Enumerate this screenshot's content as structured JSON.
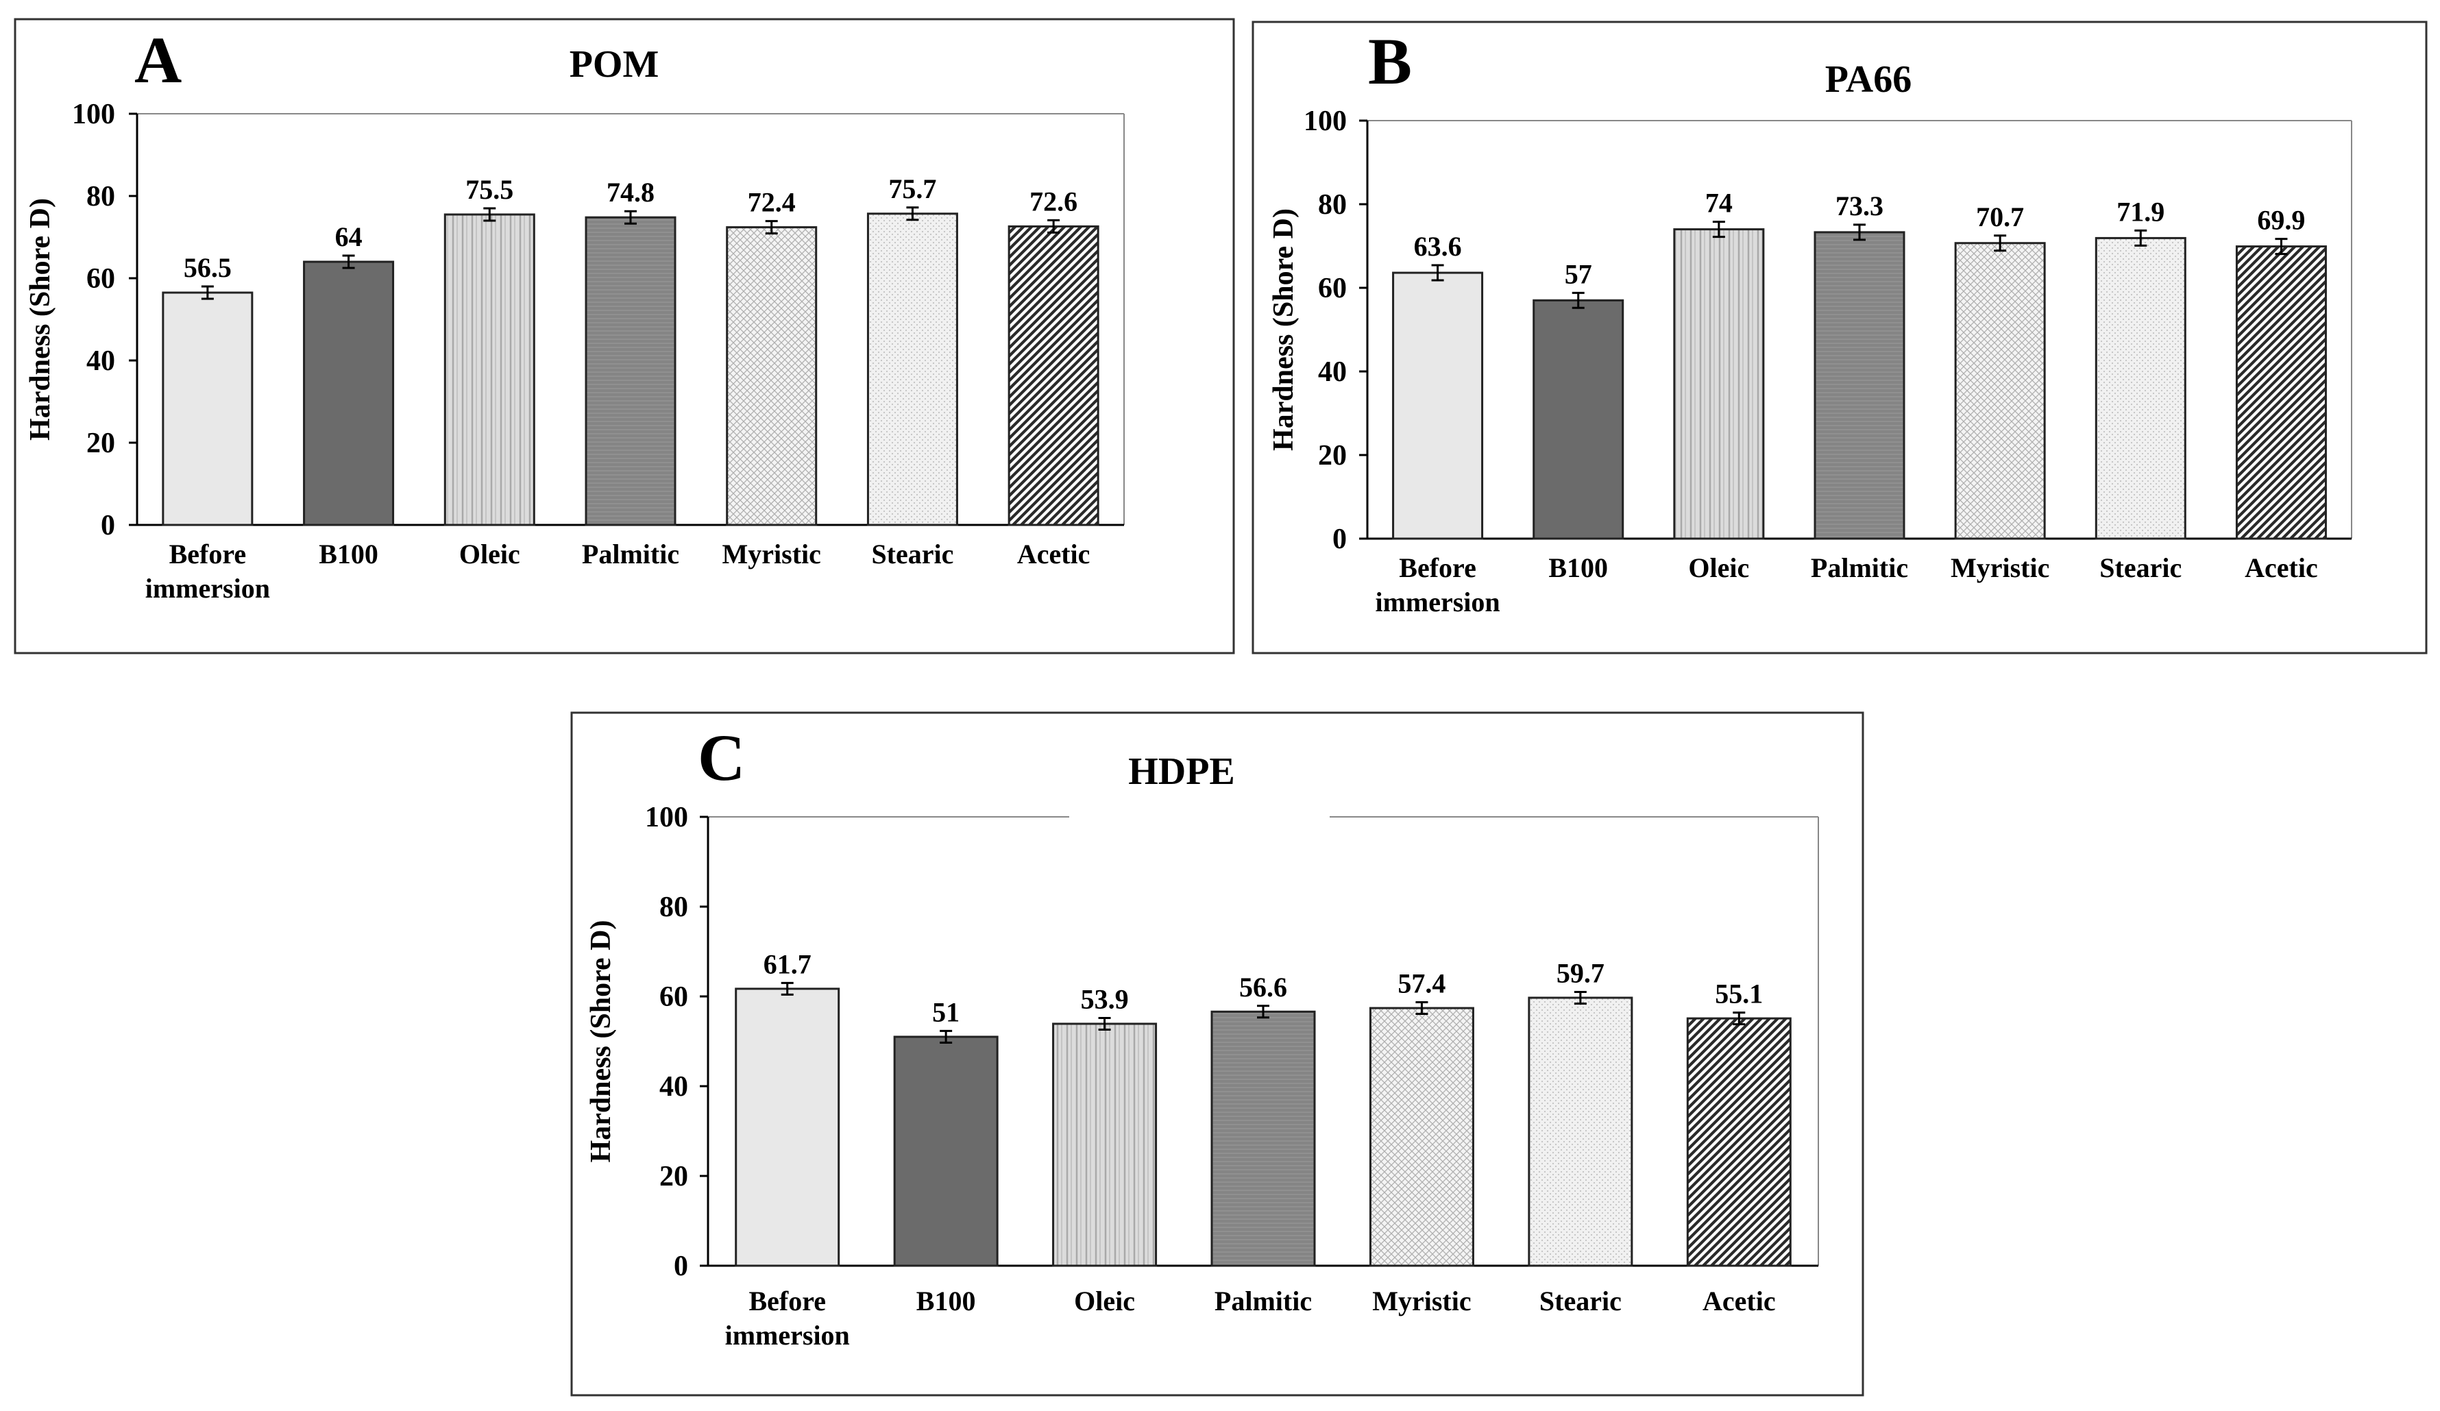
{
  "chart_data": [
    {
      "panel": "A",
      "type": "bar",
      "title": "POM",
      "xlabel": "",
      "ylabel": "Hardness (Shore D)",
      "ylim": [
        0,
        100
      ],
      "yticks": [
        "0",
        "20",
        "40",
        "60",
        "80",
        "100"
      ],
      "categories": [
        "Before immersion",
        "B100",
        "Oleic",
        "Palmitic",
        "Myristic",
        "Stearic",
        "Acetic"
      ],
      "category_lines": [
        [
          "Before",
          "immersion"
        ],
        [
          "B100"
        ],
        [
          "Oleic"
        ],
        [
          "Palmitic"
        ],
        [
          "Myristic"
        ],
        [
          "Stearic"
        ],
        [
          "Acetic"
        ]
      ],
      "values": [
        56.5,
        64,
        75.5,
        74.8,
        72.4,
        75.7,
        72.6
      ],
      "value_labels": [
        "56.5",
        "64",
        "75.5",
        "74.8",
        "72.4",
        "75.7",
        "72.6"
      ],
      "errors": [
        1.5,
        1.5,
        1.5,
        1.5,
        1.5,
        1.5,
        1.5
      ]
    },
    {
      "panel": "B",
      "type": "bar",
      "title": "PA66",
      "xlabel": "",
      "ylabel": "Hardness (Shore D)",
      "ylim": [
        0,
        100
      ],
      "yticks": [
        "0",
        "20",
        "40",
        "60",
        "80",
        "100"
      ],
      "categories": [
        "Before immersion",
        "B100",
        "Oleic",
        "Palmitic",
        "Myristic",
        "Stearic",
        "Acetic"
      ],
      "category_lines": [
        [
          "Before",
          "immersion"
        ],
        [
          "B100"
        ],
        [
          "Oleic"
        ],
        [
          "Palmitic"
        ],
        [
          "Myristic"
        ],
        [
          "Stearic"
        ],
        [
          "Acetic"
        ]
      ],
      "values": [
        63.6,
        57,
        74,
        73.3,
        70.7,
        71.9,
        69.9
      ],
      "value_labels": [
        "63.6",
        "57",
        "74",
        "73.3",
        "70.7",
        "71.9",
        "69.9"
      ],
      "errors": [
        1.8,
        1.8,
        1.8,
        1.8,
        1.8,
        1.8,
        1.8
      ]
    },
    {
      "panel": "C",
      "type": "bar",
      "title": "HDPE",
      "xlabel": "",
      "ylabel": "Hardness (Shore D)",
      "ylim": [
        0,
        100
      ],
      "yticks": [
        "0",
        "20",
        "40",
        "60",
        "80",
        "100"
      ],
      "categories": [
        "Before immersion",
        "B100",
        "Oleic",
        "Palmitic",
        "Myristic",
        "Stearic",
        "Acetic"
      ],
      "category_lines": [
        [
          "Before",
          "immersion"
        ],
        [
          "B100"
        ],
        [
          "Oleic"
        ],
        [
          "Palmitic"
        ],
        [
          "Myristic"
        ],
        [
          "Stearic"
        ],
        [
          "Acetic"
        ]
      ],
      "values": [
        61.7,
        51,
        53.9,
        56.6,
        57.4,
        59.7,
        55.1
      ],
      "value_labels": [
        "61.7",
        "51",
        "53.9",
        "56.6",
        "57.4",
        "59.7",
        "55.1"
      ],
      "errors": [
        1.3,
        1.3,
        1.3,
        1.3,
        1.3,
        1.3,
        1.3
      ]
    }
  ],
  "colors": {
    "before": "#e8e8e8",
    "b100": "#6b6b6b",
    "oleic": "#d4d4d4",
    "palmitic": "#8a8a8a",
    "myristic": "#e2e2e2",
    "stearic": "#eeeeee",
    "acetic": "#3a3a3a",
    "frame": "#333333",
    "plot_border": "#888888"
  }
}
